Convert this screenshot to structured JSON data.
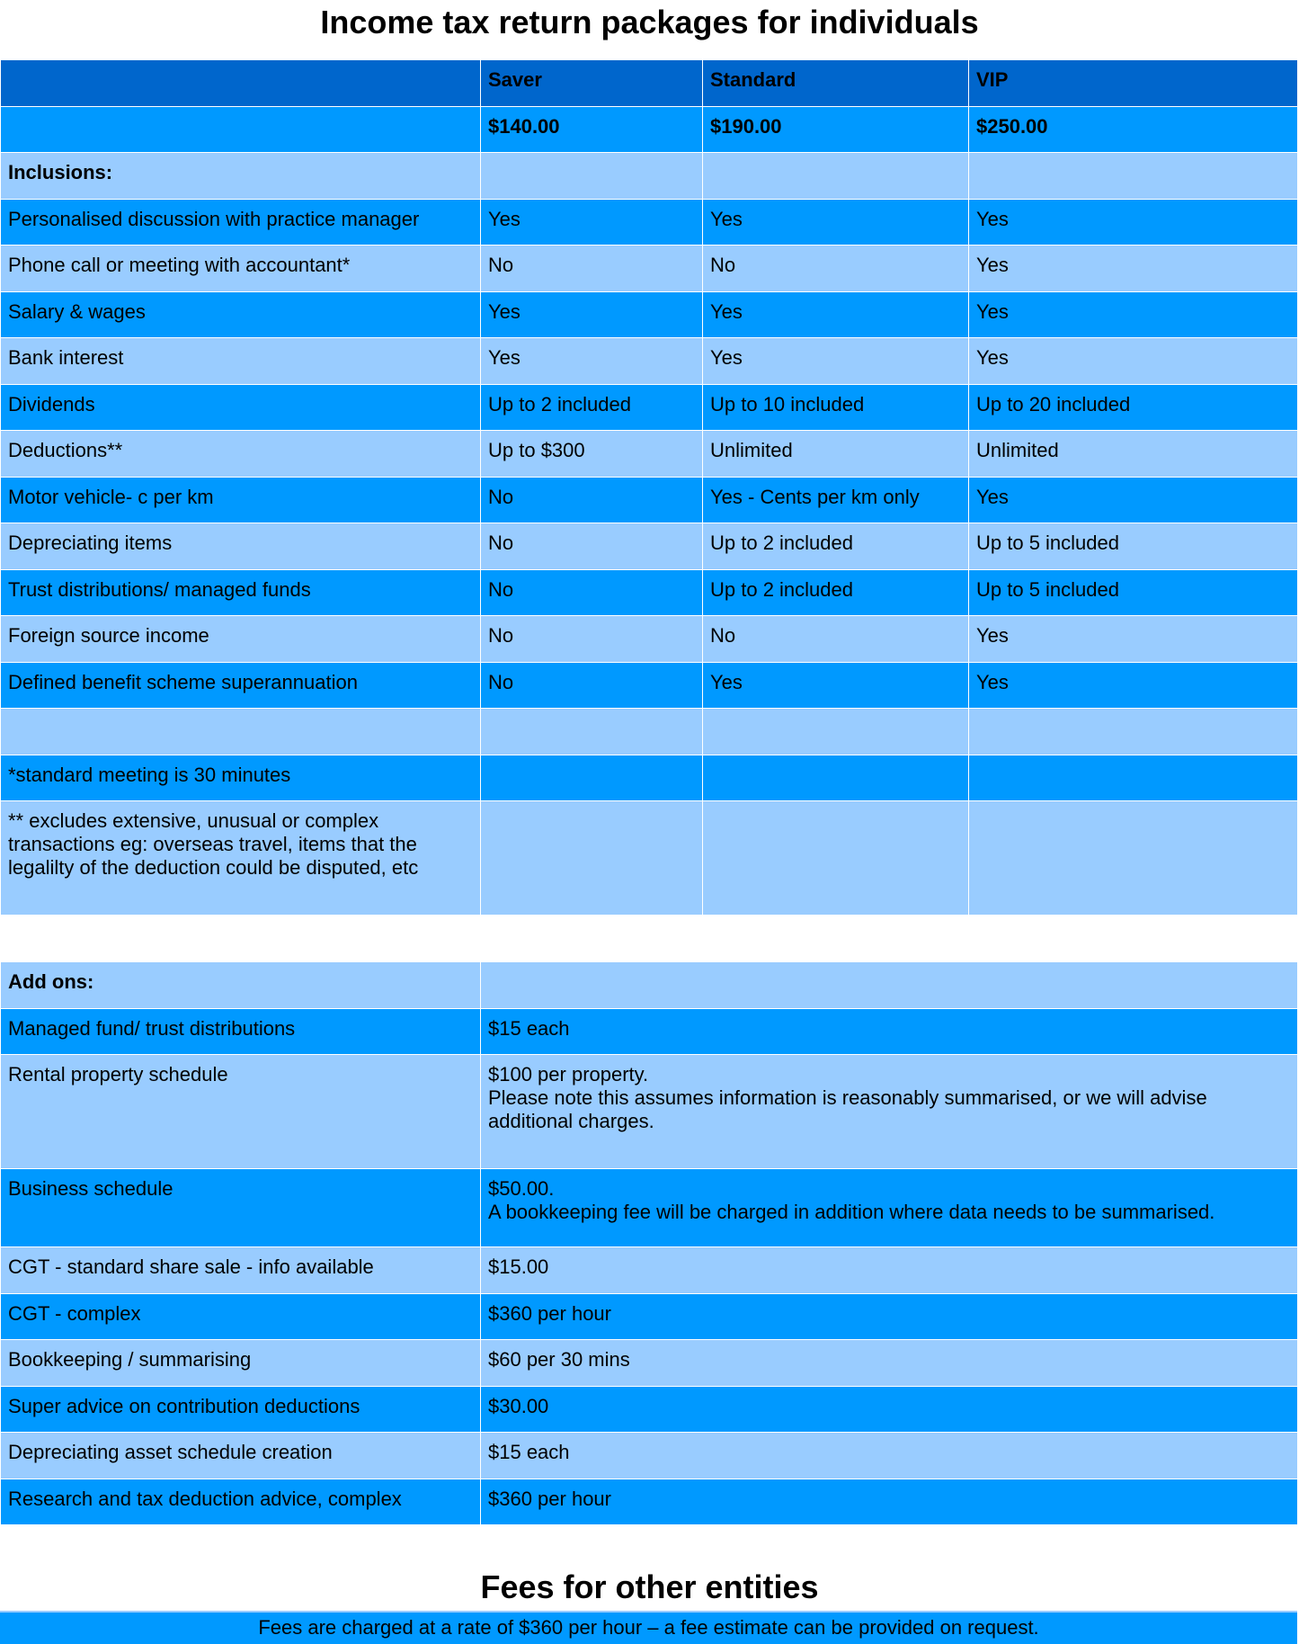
{
  "title": "Income tax return packages for individuals",
  "packages": {
    "headers": [
      "",
      "Saver",
      "Standard",
      "VIP"
    ],
    "prices": [
      "",
      "$140.00",
      "$190.00",
      "$250.00"
    ],
    "section_label": "Inclusions:",
    "rows": [
      [
        "Personalised discussion with practice manager",
        "Yes",
        "Yes",
        "Yes"
      ],
      [
        "Phone call or meeting with accountant*",
        "No",
        "No",
        "Yes"
      ],
      [
        "Salary & wages",
        "Yes",
        "Yes",
        "Yes"
      ],
      [
        "Bank interest",
        "Yes",
        "Yes",
        "Yes"
      ],
      [
        "Dividends",
        "Up to 2 included",
        "Up to 10 included",
        "Up to 20 included"
      ],
      [
        "Deductions**",
        "Up to $300",
        "Unlimited",
        "Unlimited"
      ],
      [
        "Motor vehicle- c per km",
        "No",
        "Yes - Cents per km only",
        "Yes"
      ],
      [
        "Depreciating items",
        "No",
        "Up to 2 included",
        "Up to 5 included"
      ],
      [
        "Trust distributions/ managed funds",
        "No",
        "Up to  2 included",
        "Up to 5 included"
      ],
      [
        "Foreign source income",
        "No",
        "No",
        "Yes"
      ],
      [
        "Defined benefit scheme superannuation",
        "No",
        "Yes",
        "Yes"
      ]
    ],
    "footnote1": "*standard meeting is 30 minutes",
    "footnote2": "** excludes extensive, unusual or complex transactions eg: overseas travel, items that the legalilty of the deduction could be disputed, etc"
  },
  "addons": {
    "section_label": "Add ons:",
    "rows": [
      [
        "Managed fund/ trust distributions",
        "$15 each",
        ""
      ],
      [
        "Rental property schedule",
        "$100 per property.",
        "Please note this assumes information is reasonably summarised, or we will advise additional charges."
      ],
      [
        "Business schedule",
        "$50.00.",
        "A bookkeeping fee will be charged in addition where data needs to be summarised."
      ],
      [
        "CGT - standard share sale - info available",
        "$15.00",
        ""
      ],
      [
        "CGT - complex",
        "$360 per hour",
        ""
      ],
      [
        "Bookkeeping / summarising",
        "$60 per 30 mins",
        ""
      ],
      [
        "Super advice on contribution deductions",
        "$30.00",
        ""
      ],
      [
        "Depreciating asset schedule creation",
        "$15 each",
        ""
      ],
      [
        "Research and tax deduction advice, complex",
        "$360 per hour",
        ""
      ]
    ]
  },
  "other_entities": {
    "title": "Fees for other entities",
    "note": "Fees are charged at a rate of $360 per hour – a fee estimate can be provided on request."
  },
  "colors": {
    "header": "#0066cc",
    "medium": "#0099ff",
    "light": "#99ccff"
  }
}
